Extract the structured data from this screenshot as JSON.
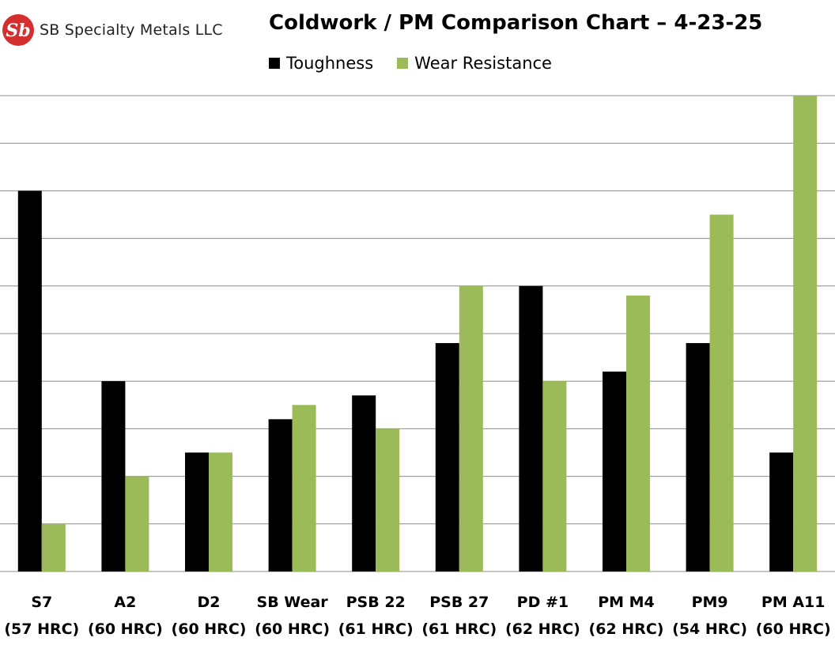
{
  "brand": {
    "name": "SB Specialty Metals LLC",
    "mark": "Sb"
  },
  "colors": {
    "toughness": "#000000",
    "wear": "#9BBB59",
    "logo": "#D42E2E",
    "grid": "#8C8C8C"
  },
  "chart_data": {
    "type": "bar",
    "title": "Coldwork / PM Comparison Chart – 4-23-25",
    "xlabel": "",
    "ylabel": "",
    "ylim": [
      0,
      10
    ],
    "grid": true,
    "legend": "top",
    "categories": [
      [
        "S7",
        "(57 HRC)"
      ],
      [
        "A2",
        "(60 HRC)"
      ],
      [
        "D2",
        "(60 HRC)"
      ],
      [
        "SB Wear",
        "(60 HRC)"
      ],
      [
        "PSB 22",
        "(61 HRC)"
      ],
      [
        "PSB 27",
        "(61 HRC)"
      ],
      [
        "PD #1",
        "(62 HRC)"
      ],
      [
        "PM M4",
        "(62 HRC)"
      ],
      [
        "PM9",
        "(54 HRC)"
      ],
      [
        "PM A11",
        "(60 HRC)"
      ]
    ],
    "series": [
      {
        "name": "Toughness",
        "values": [
          8,
          4,
          2.5,
          3.2,
          3.7,
          4.8,
          6,
          4.2,
          4.8,
          2.5
        ]
      },
      {
        "name": "Wear Resistance",
        "values": [
          1,
          2,
          2.5,
          3.5,
          3,
          6,
          4,
          5.8,
          7.5,
          10
        ]
      }
    ]
  }
}
